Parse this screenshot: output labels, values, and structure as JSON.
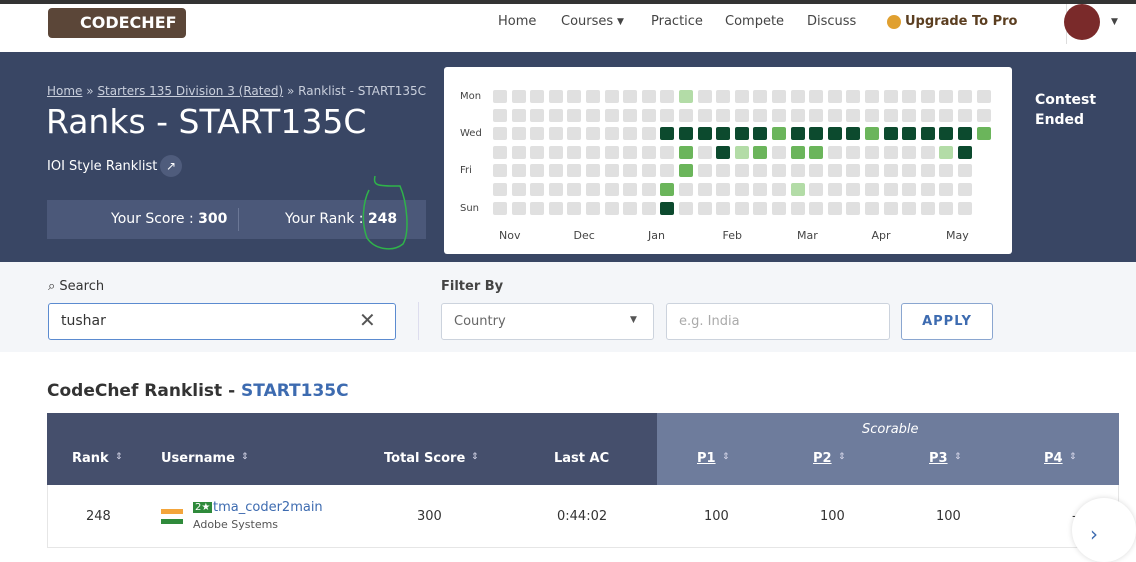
{
  "nav": {
    "logo": "CODECHEF",
    "items": [
      "Home",
      "Courses",
      "Practice",
      "Compete",
      "Discuss"
    ],
    "upgrade": "Upgrade To Pro"
  },
  "banner": {
    "breadcrumb": [
      "Home",
      "Starters 135 Division 3 (Rated)",
      "Ranklist - START135C"
    ],
    "separator": "»",
    "title": "Ranks - START135C",
    "subtitle": "IOI Style Ranklist",
    "score_label": "Your Score : ",
    "score": "300",
    "rank_label": "Your Rank : ",
    "rank": "248",
    "status": "Contest Ended"
  },
  "heatmap": {
    "day_labels": [
      "Mon",
      null,
      "Wed",
      null,
      "Fri",
      null,
      "Sun"
    ],
    "months": [
      "Nov",
      "Dec",
      "Jan",
      "Feb",
      "Mar",
      "Apr",
      "May"
    ],
    "levels": [
      [
        0,
        0,
        0,
        0,
        0,
        0,
        0,
        0,
        0,
        0,
        1,
        0,
        0,
        0,
        0,
        0,
        0,
        0,
        0,
        0,
        0,
        0,
        0,
        0,
        0,
        0,
        0
      ],
      [
        0,
        0,
        0,
        0,
        0,
        0,
        0,
        0,
        0,
        0,
        0,
        0,
        0,
        0,
        0,
        0,
        0,
        0,
        0,
        0,
        0,
        0,
        0,
        0,
        0,
        0,
        0
      ],
      [
        0,
        0,
        0,
        0,
        0,
        0,
        0,
        0,
        0,
        3,
        3,
        3,
        3,
        3,
        3,
        2,
        3,
        3,
        3,
        3,
        2,
        3,
        3,
        3,
        3,
        3,
        2
      ],
      [
        0,
        0,
        0,
        0,
        0,
        0,
        0,
        0,
        0,
        0,
        2,
        0,
        3,
        1,
        2,
        0,
        2,
        2,
        0,
        0,
        0,
        0,
        0,
        0,
        1,
        3,
        null
      ],
      [
        0,
        0,
        0,
        0,
        0,
        0,
        0,
        0,
        0,
        0,
        2,
        0,
        0,
        0,
        0,
        0,
        0,
        0,
        0,
        0,
        0,
        0,
        0,
        0,
        0,
        0,
        null
      ],
      [
        0,
        0,
        0,
        0,
        0,
        0,
        0,
        0,
        0,
        2,
        0,
        0,
        0,
        0,
        0,
        0,
        1,
        0,
        0,
        0,
        0,
        0,
        0,
        0,
        0,
        0,
        null
      ],
      [
        0,
        0,
        0,
        0,
        0,
        0,
        0,
        0,
        0,
        3,
        0,
        0,
        0,
        0,
        0,
        0,
        0,
        0,
        0,
        0,
        0,
        0,
        0,
        0,
        0,
        0,
        null
      ]
    ],
    "colors": [
      "#e0e0e0",
      "#b3dca7",
      "#6bb55b",
      "#0c4a2e"
    ]
  },
  "filters": {
    "search_label": "Search",
    "search_value": "tushar",
    "filter_label": "Filter By",
    "country": "Country",
    "placeholder": "e.g. India",
    "apply": "APPLY"
  },
  "table": {
    "heading": "CodeChef Ranklist - ",
    "contest": "START135C",
    "group": "Scorable",
    "headers": [
      "Rank",
      "Username",
      "Total Score",
      "Last AC",
      "P1",
      "P2",
      "P3",
      "P4"
    ],
    "rows": [
      {
        "rank": "248",
        "stars": "2★",
        "username": "tma_coder2main",
        "org": "Adobe Systems",
        "total": "300",
        "last_ac": "0:44:02",
        "scores": [
          "100",
          "100",
          "100",
          "-"
        ]
      }
    ]
  }
}
